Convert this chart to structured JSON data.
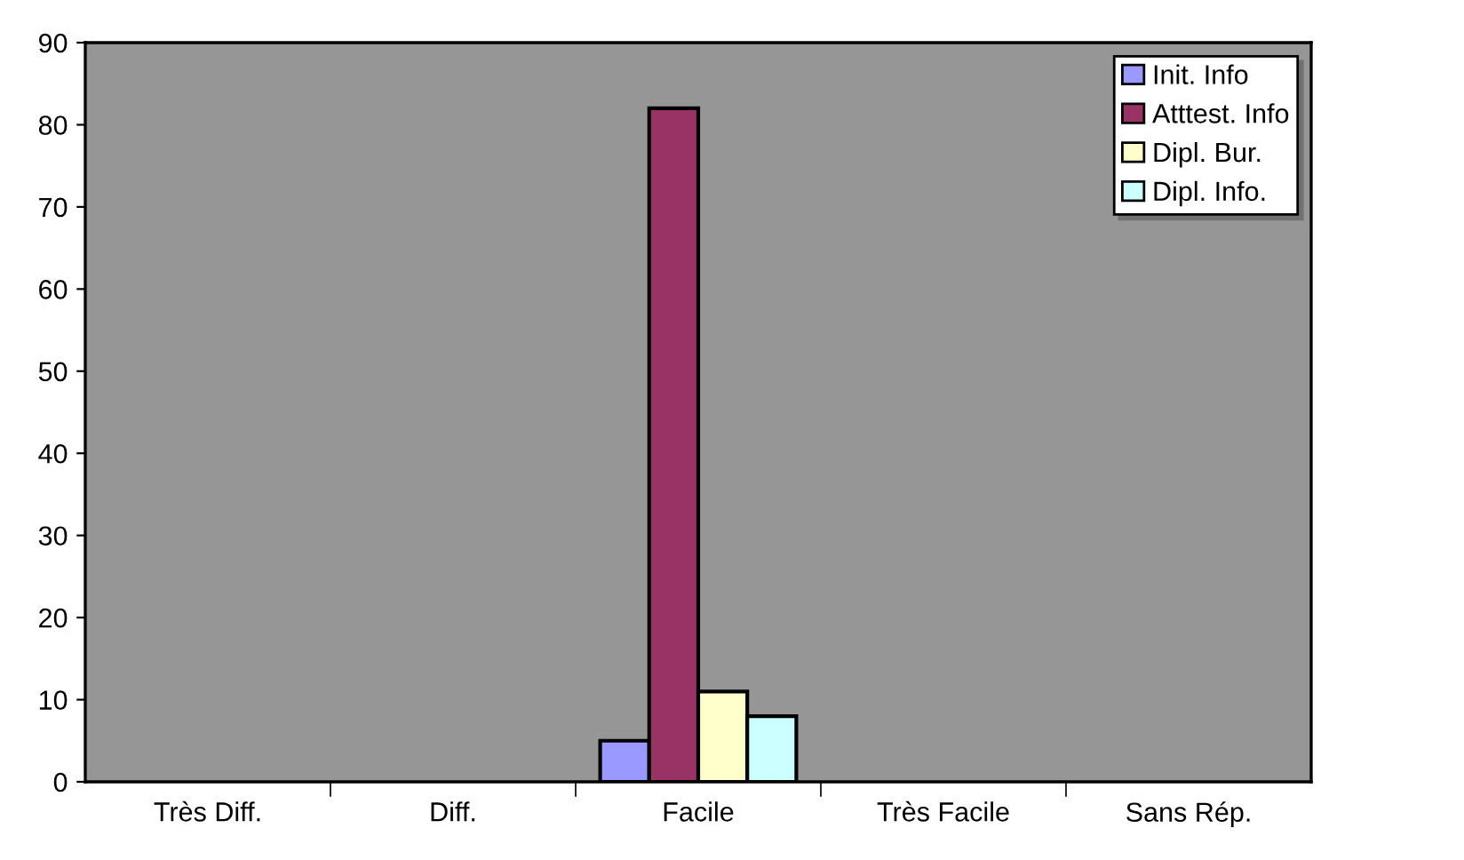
{
  "chart_data": {
    "type": "bar",
    "categories": [
      "Très Diff.",
      "Diff.",
      "Facile",
      "Très Facile",
      "Sans Rép."
    ],
    "series": [
      {
        "name": "Init. Info",
        "color": "#9999ff",
        "values": [
          null,
          null,
          5,
          null,
          null
        ]
      },
      {
        "name": "Atttest. Info",
        "color": "#993366",
        "values": [
          null,
          null,
          82,
          null,
          null
        ]
      },
      {
        "name": "Dipl. Bur.",
        "color": "#ffffcc",
        "values": [
          null,
          null,
          11,
          null,
          null
        ]
      },
      {
        "name": "Dipl. Info.",
        "color": "#ccffff",
        "values": [
          null,
          null,
          8,
          null,
          null
        ]
      }
    ],
    "ylim": [
      0,
      90
    ],
    "yticks": [
      0,
      10,
      20,
      30,
      40,
      50,
      60,
      70,
      80,
      90
    ],
    "grid": false,
    "legend": "top right"
  }
}
